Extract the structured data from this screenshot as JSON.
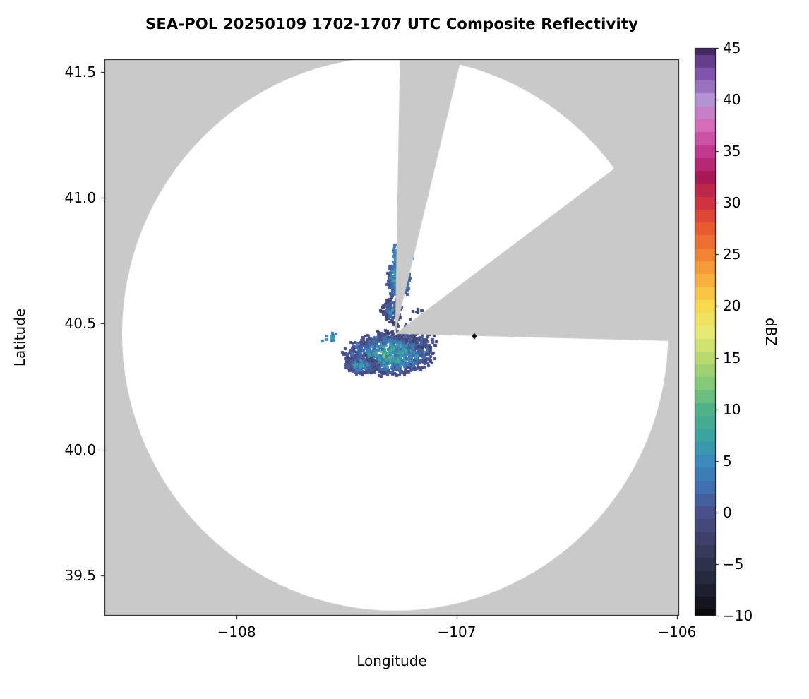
{
  "chart_data": {
    "type": "heatmap",
    "title": "SEA-POL 20250109 1702-1707 UTC Composite Reflectivity",
    "xlabel": "Longitude",
    "ylabel": "Latitude",
    "xlim": [
      -108.6,
      -105.99
    ],
    "ylim": [
      39.34,
      41.55
    ],
    "xticks": [
      -108,
      -107,
      -106
    ],
    "xtick_labels": [
      "−108",
      "−107",
      "−106"
    ],
    "yticks": [
      39.5,
      40.0,
      40.5,
      41.0,
      41.5
    ],
    "ytick_labels": [
      "39.5",
      "40.0",
      "40.5",
      "41.0",
      "41.5"
    ],
    "grid": false,
    "colors": {
      "figure_bg": "#ffffff",
      "no_coverage": "#c9c9c9",
      "coverage": "#ffffff",
      "frame": "#000000"
    },
    "colorbar": {
      "label": "dBZ",
      "min": -10,
      "max": 45,
      "ticks": [
        -10,
        -5,
        0,
        5,
        10,
        15,
        20,
        25,
        30,
        35,
        40,
        45
      ],
      "tick_labels": [
        "−10",
        "−5",
        "0",
        "5",
        "10",
        "15",
        "20",
        "25",
        "30",
        "35",
        "40",
        "45"
      ],
      "stops": [
        [
          -10,
          "#0a0a0c"
        ],
        [
          -7.5,
          "#1e2030"
        ],
        [
          -5,
          "#2e3149"
        ],
        [
          -2.5,
          "#3d4069"
        ],
        [
          0,
          "#4b4f8a"
        ],
        [
          2.5,
          "#3f6fae"
        ],
        [
          5,
          "#3b8abe"
        ],
        [
          7.5,
          "#3aa49e"
        ],
        [
          10,
          "#4fb287"
        ],
        [
          12.5,
          "#86c979"
        ],
        [
          15,
          "#b9db6e"
        ],
        [
          17.5,
          "#e6ea73"
        ],
        [
          20,
          "#f8d94e"
        ],
        [
          22.5,
          "#f8b03f"
        ],
        [
          25,
          "#f08432"
        ],
        [
          27.5,
          "#e85b2f"
        ],
        [
          30,
          "#d03340"
        ],
        [
          32.5,
          "#a81a55"
        ],
        [
          35,
          "#c2388f"
        ],
        [
          37.5,
          "#d66cba"
        ],
        [
          40,
          "#b393d3"
        ],
        [
          42.5,
          "#8053ad"
        ],
        [
          45,
          "#472866"
        ]
      ]
    },
    "radar": {
      "center_lon": -107.28,
      "center_lat": 40.46,
      "radius_lon_deg": 1.24,
      "radius_lat_deg": 1.1,
      "azimuth_reference": "degrees clockwise from north",
      "blocked_sectors_deg": [
        {
          "start": 1.0,
          "end": 13.5
        },
        {
          "start": 53.0,
          "end": 91.5
        }
      ]
    },
    "marker": {
      "shape": "diamond",
      "color": "#000000",
      "lon": -106.92,
      "lat": 40.45
    },
    "echoes": [
      {
        "name": "main-echo",
        "cx": -107.31,
        "cy": 40.385,
        "rx": 0.19,
        "ry": 0.08,
        "n": 1100,
        "vmin": -2,
        "vmax": 13,
        "seed": 7
      },
      {
        "name": "main-echo-tail",
        "cx": -107.44,
        "cy": 40.34,
        "rx": 0.07,
        "ry": 0.035,
        "n": 220,
        "vmin": -2,
        "vmax": 10,
        "seed": 11
      },
      {
        "name": "band-lower",
        "cx": -107.3,
        "cy": 40.56,
        "rx": 0.045,
        "ry": 0.05,
        "n": 120,
        "vmin": -3,
        "vmax": 8,
        "seed": 13
      },
      {
        "name": "band-mid",
        "cx": -107.27,
        "cy": 40.68,
        "rx": 0.05,
        "ry": 0.075,
        "n": 280,
        "vmin": 0,
        "vmax": 12,
        "seed": 17
      },
      {
        "name": "band-upper",
        "cx": -107.25,
        "cy": 40.78,
        "rx": 0.045,
        "ry": 0.06,
        "n": 210,
        "vmin": 2,
        "vmax": 15,
        "seed": 19
      },
      {
        "name": "band-tip",
        "cx": -107.23,
        "cy": 40.86,
        "rx": 0.04,
        "ry": 0.03,
        "n": 90,
        "vmin": 5,
        "vmax": 16,
        "seed": 23
      },
      {
        "name": "west-specks",
        "cx": -107.57,
        "cy": 40.45,
        "rx": 0.06,
        "ry": 0.02,
        "n": 16,
        "vmin": 2,
        "vmax": 9,
        "seed": 29
      },
      {
        "name": "east-specks",
        "cx": -107.15,
        "cy": 40.44,
        "rx": 0.06,
        "ry": 0.03,
        "n": 28,
        "vmin": -3,
        "vmax": 4,
        "seed": 31
      },
      {
        "name": "ring-specks",
        "cx": -107.18,
        "cy": 40.52,
        "rx": 0.05,
        "ry": 0.045,
        "n": 20,
        "vmin": -3,
        "vmax": 3,
        "seed": 41
      },
      {
        "name": "scatter-specks",
        "cx": -107.25,
        "cy": 40.47,
        "rx": 0.08,
        "ry": 0.035,
        "n": 24,
        "vmin": -3,
        "vmax": 5,
        "seed": 37
      }
    ]
  }
}
